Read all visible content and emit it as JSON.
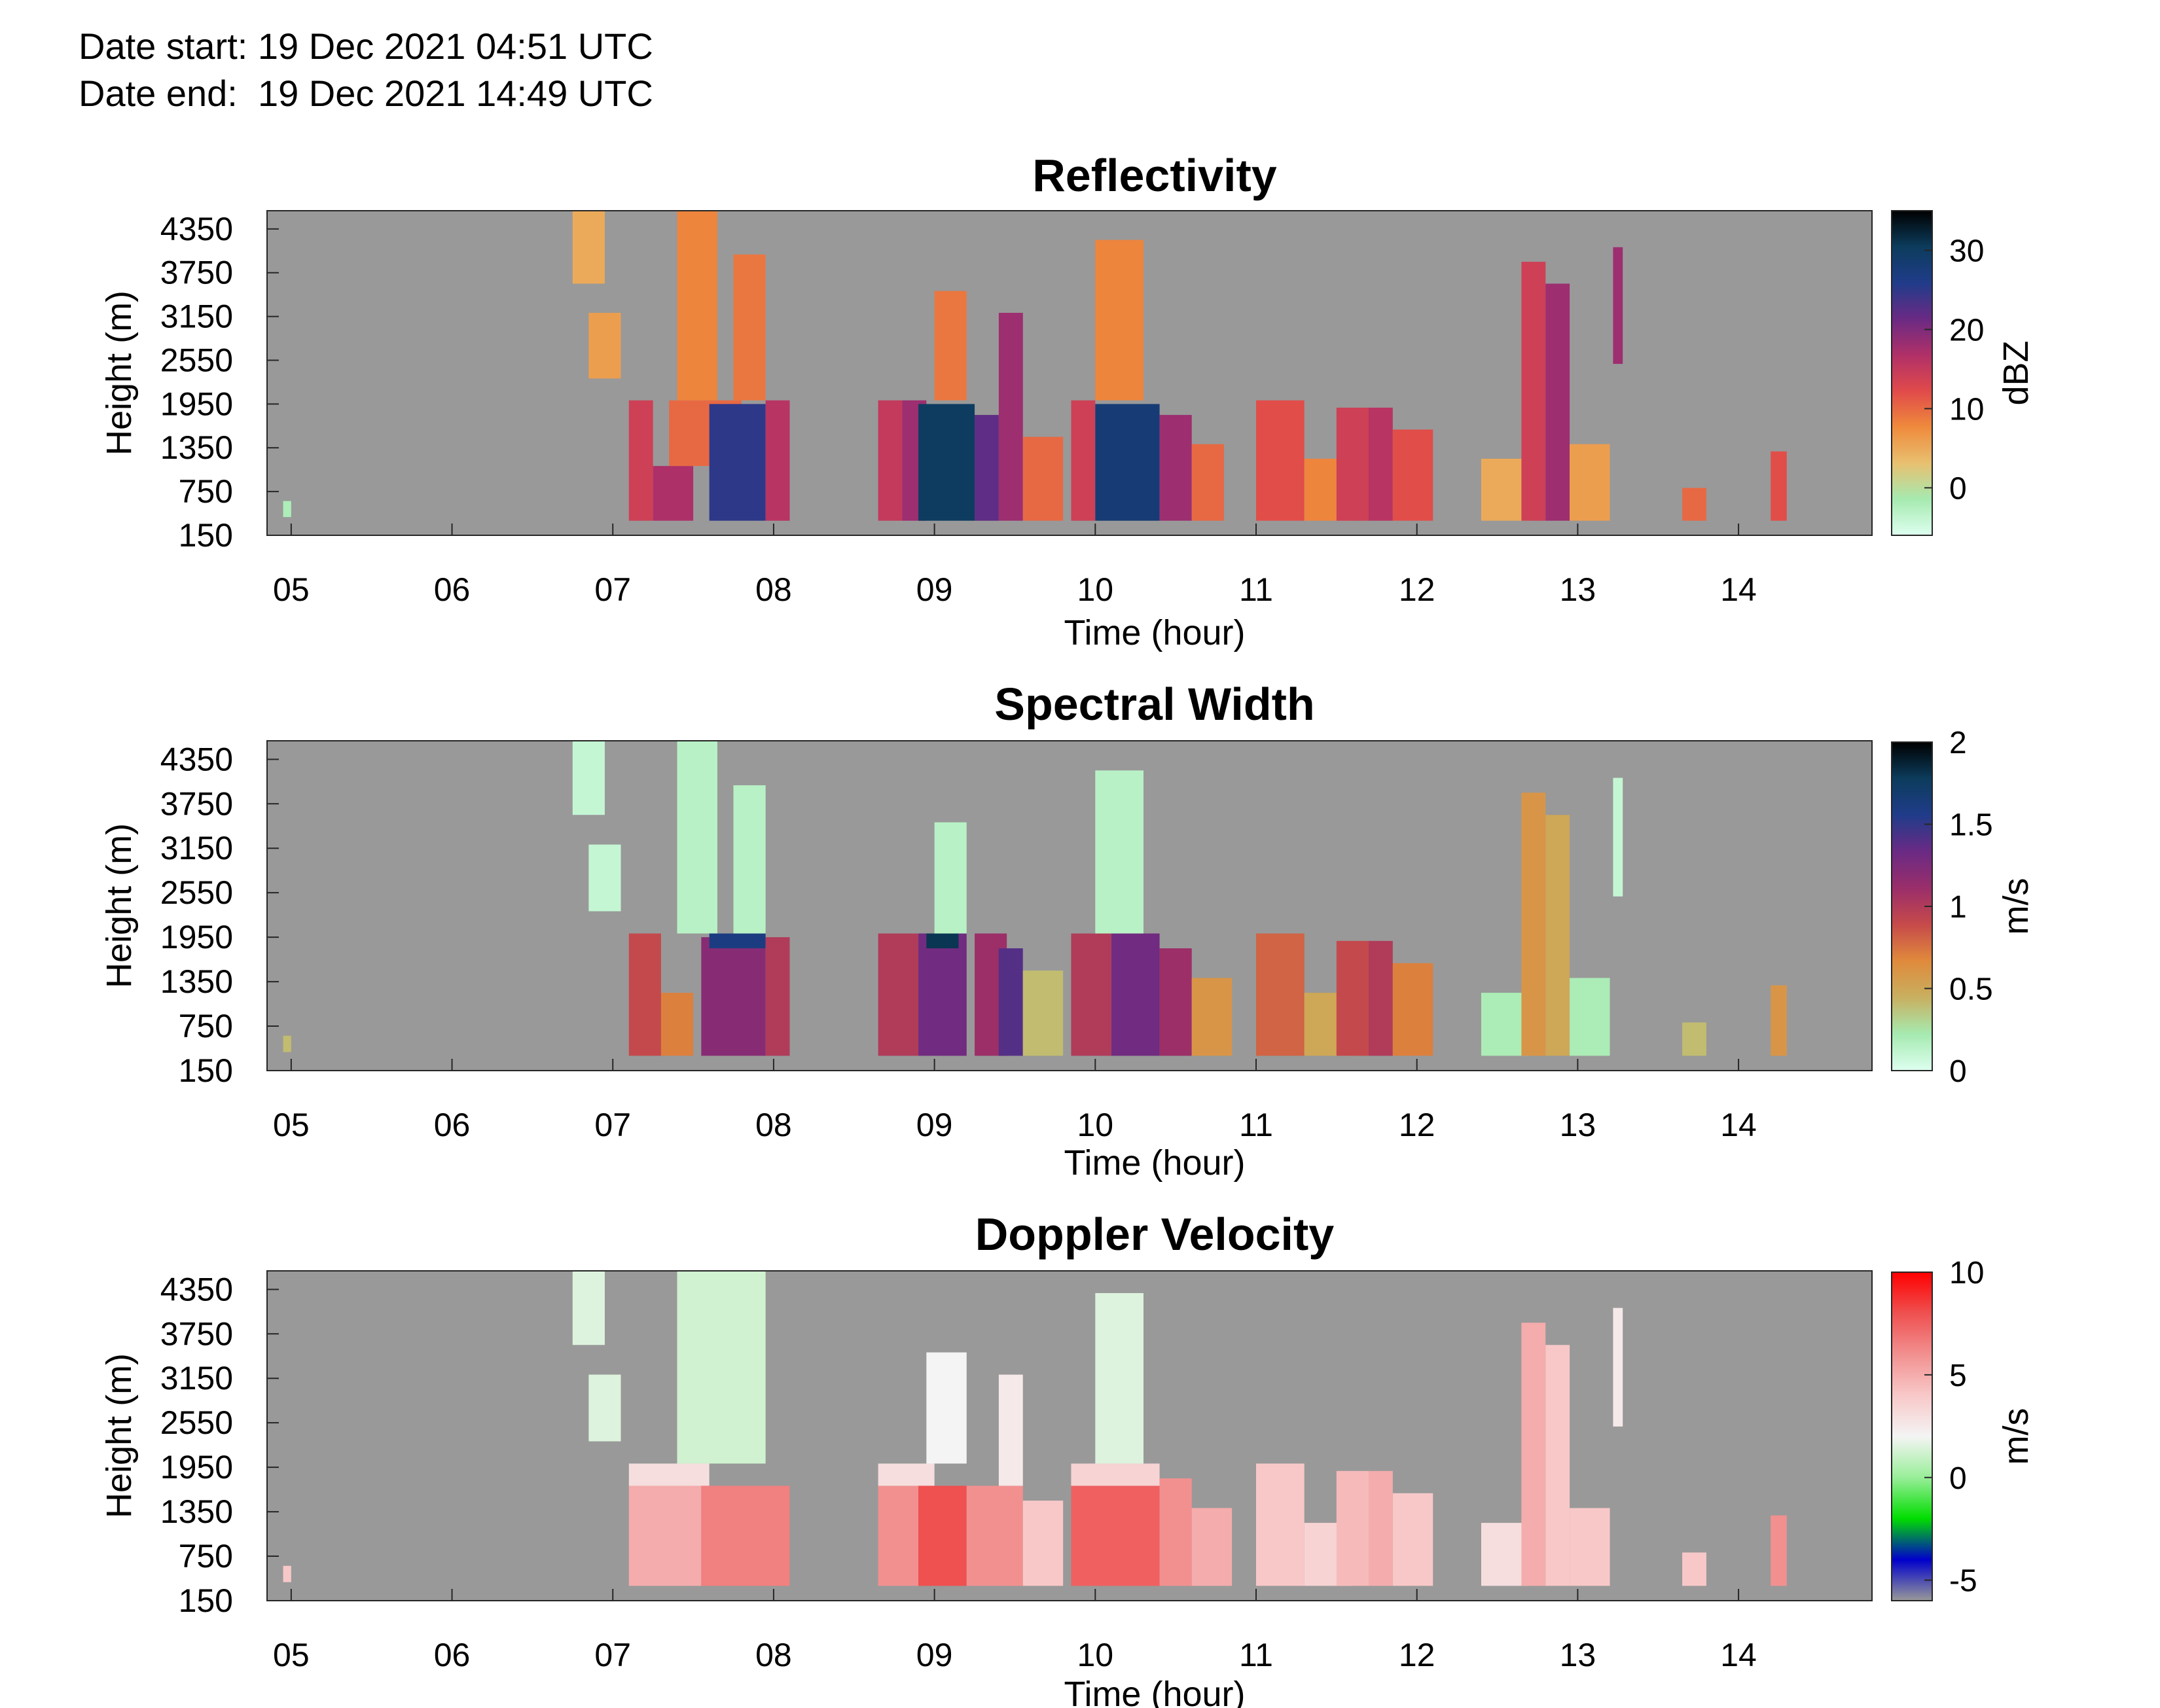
{
  "header": {
    "date_start": "Date start: 19 Dec 2021 04:51 UTC",
    "date_end": "Date end:  19 Dec 2021 14:49 UTC"
  },
  "chart_data": [
    {
      "type": "heatmap",
      "title": "Reflectivity",
      "xlabel": "Time (hour)",
      "ylabel": "Height (m)",
      "x_ticks": [
        "05",
        "06",
        "07",
        "08",
        "09",
        "10",
        "11",
        "12",
        "13",
        "14"
      ],
      "x_tick_values": [
        5,
        6,
        7,
        8,
        9,
        10,
        11,
        12,
        13,
        14
      ],
      "xlim": [
        4.85,
        14.83
      ],
      "y_ticks": [
        "150",
        "750",
        "1350",
        "1950",
        "2550",
        "3150",
        "3750",
        "4350"
      ],
      "y_tick_values": [
        150,
        750,
        1350,
        1950,
        2550,
        3150,
        3750,
        4350
      ],
      "ylim": [
        150,
        4600
      ],
      "colorbar": {
        "label": "dBZ",
        "range": [
          -6,
          35
        ],
        "ticks": [
          "0",
          "10",
          "20",
          "30"
        ],
        "tick_values": [
          0,
          10,
          20,
          30
        ],
        "colors": [
          "#ddfff0",
          "#a6eab0",
          "#e8c070",
          "#ef8a3c",
          "#e04a4a",
          "#b03068",
          "#6a2a84",
          "#203c8a",
          "#0c3c5c",
          "#000000"
        ]
      },
      "background_color": "#999999",
      "cells": [
        [
          4.95,
          5.0,
          400,
          620,
          -2
        ],
        [
          6.75,
          6.95,
          3600,
          4600,
          5
        ],
        [
          6.85,
          7.05,
          2300,
          3200,
          6
        ],
        [
          7.1,
          7.25,
          350,
          2000,
          14
        ],
        [
          7.25,
          7.5,
          350,
          1100,
          17
        ],
        [
          7.35,
          7.8,
          1100,
          2000,
          10
        ],
        [
          7.4,
          7.65,
          2000,
          4600,
          8
        ],
        [
          7.6,
          7.95,
          350,
          1950,
          25
        ],
        [
          7.75,
          7.95,
          2000,
          4000,
          9
        ],
        [
          7.95,
          8.1,
          350,
          2000,
          16
        ],
        [
          8.65,
          8.8,
          350,
          2000,
          15
        ],
        [
          8.8,
          8.95,
          350,
          2000,
          18
        ],
        [
          8.9,
          9.25,
          350,
          1950,
          30
        ],
        [
          9.0,
          9.2,
          2000,
          3500,
          9
        ],
        [
          9.25,
          9.4,
          350,
          1800,
          22
        ],
        [
          9.4,
          9.55,
          350,
          3200,
          18
        ],
        [
          9.55,
          9.8,
          350,
          1500,
          10
        ],
        [
          9.85,
          10.0,
          350,
          2000,
          14
        ],
        [
          10.0,
          10.4,
          350,
          1950,
          28
        ],
        [
          10.0,
          10.3,
          2000,
          4200,
          8
        ],
        [
          10.4,
          10.6,
          350,
          1800,
          18
        ],
        [
          10.6,
          10.8,
          350,
          1400,
          10
        ],
        [
          11.0,
          11.3,
          350,
          2000,
          12
        ],
        [
          11.3,
          11.6,
          350,
          1200,
          8
        ],
        [
          11.5,
          11.7,
          350,
          1900,
          14
        ],
        [
          11.7,
          11.85,
          350,
          1900,
          16
        ],
        [
          11.85,
          12.1,
          350,
          1600,
          12
        ],
        [
          12.4,
          12.7,
          350,
          1200,
          5
        ],
        [
          12.65,
          12.8,
          350,
          3900,
          14
        ],
        [
          12.8,
          12.95,
          350,
          3600,
          18
        ],
        [
          12.95,
          13.2,
          350,
          1400,
          6
        ],
        [
          13.22,
          13.28,
          2500,
          4100,
          18
        ],
        [
          13.65,
          13.8,
          350,
          800,
          10
        ],
        [
          14.2,
          14.3,
          350,
          1300,
          12
        ]
      ]
    },
    {
      "type": "heatmap",
      "title": "Spectral Width",
      "xlabel": "Time (hour)",
      "ylabel": "Height (m)",
      "x_ticks": [
        "05",
        "06",
        "07",
        "08",
        "09",
        "10",
        "11",
        "12",
        "13",
        "14"
      ],
      "x_tick_values": [
        5,
        6,
        7,
        8,
        9,
        10,
        11,
        12,
        13,
        14
      ],
      "xlim": [
        4.85,
        14.83
      ],
      "y_ticks": [
        "150",
        "750",
        "1350",
        "1950",
        "2550",
        "3150",
        "3750",
        "4350"
      ],
      "y_tick_values": [
        150,
        750,
        1350,
        1950,
        2550,
        3150,
        3750,
        4350
      ],
      "ylim": [
        150,
        4600
      ],
      "colorbar": {
        "label": "m/s",
        "range": [
          0,
          2
        ],
        "ticks": [
          "0",
          "0.5",
          "1",
          "1.5",
          "2"
        ],
        "tick_values": [
          0,
          0.5,
          1,
          1.5,
          2
        ],
        "colors": [
          "#ddfff0",
          "#a6eab0",
          "#c8b060",
          "#e08a3c",
          "#c64a4a",
          "#9a2e6a",
          "#6a2a84",
          "#203c8a",
          "#0c3c5c",
          "#000000"
        ]
      },
      "background_color": "#999999",
      "cells": [
        [
          4.95,
          5.0,
          400,
          620,
          0.4
        ],
        [
          6.75,
          6.95,
          3600,
          4600,
          0.1
        ],
        [
          6.85,
          7.05,
          2300,
          3200,
          0.1
        ],
        [
          7.1,
          7.3,
          350,
          2000,
          0.9
        ],
        [
          7.3,
          7.5,
          350,
          1200,
          0.7
        ],
        [
          7.4,
          7.65,
          2000,
          4600,
          0.15
        ],
        [
          7.55,
          7.95,
          350,
          1950,
          1.2
        ],
        [
          7.6,
          7.95,
          1800,
          2000,
          1.6
        ],
        [
          7.75,
          7.95,
          2000,
          4000,
          0.15
        ],
        [
          7.95,
          8.1,
          350,
          1950,
          1.0
        ],
        [
          8.65,
          8.9,
          350,
          2000,
          1.0
        ],
        [
          8.9,
          9.2,
          350,
          2000,
          1.3
        ],
        [
          8.95,
          9.15,
          1800,
          2000,
          1.8
        ],
        [
          9.0,
          9.2,
          2000,
          3500,
          0.15
        ],
        [
          9.25,
          9.45,
          350,
          2000,
          1.1
        ],
        [
          9.4,
          9.55,
          350,
          1800,
          1.4
        ],
        [
          9.55,
          9.8,
          350,
          1500,
          0.4
        ],
        [
          9.85,
          10.1,
          350,
          2000,
          1.0
        ],
        [
          10.1,
          10.4,
          350,
          2000,
          1.3
        ],
        [
          10.0,
          10.3,
          2000,
          4200,
          0.15
        ],
        [
          10.4,
          10.6,
          350,
          1800,
          1.1
        ],
        [
          10.6,
          10.85,
          350,
          1400,
          0.6
        ],
        [
          11.0,
          11.3,
          350,
          2000,
          0.8
        ],
        [
          11.3,
          11.6,
          350,
          1200,
          0.5
        ],
        [
          11.5,
          11.7,
          350,
          1900,
          0.9
        ],
        [
          11.7,
          11.85,
          350,
          1900,
          1.0
        ],
        [
          11.85,
          12.1,
          350,
          1600,
          0.7
        ],
        [
          12.4,
          12.7,
          350,
          1200,
          0.2
        ],
        [
          12.65,
          12.8,
          350,
          3900,
          0.6
        ],
        [
          12.8,
          12.95,
          350,
          3600,
          0.5
        ],
        [
          12.95,
          13.2,
          350,
          1400,
          0.2
        ],
        [
          13.22,
          13.28,
          2500,
          4100,
          0.1
        ],
        [
          13.65,
          13.8,
          350,
          800,
          0.4
        ],
        [
          14.2,
          14.3,
          350,
          1300,
          0.6
        ]
      ]
    },
    {
      "type": "heatmap",
      "title": "Doppler Velocity",
      "xlabel": "Time (hour)",
      "ylabel": "Height (m)",
      "x_ticks": [
        "05",
        "06",
        "07",
        "08",
        "09",
        "10",
        "11",
        "12",
        "13",
        "14"
      ],
      "x_tick_values": [
        5,
        6,
        7,
        8,
        9,
        10,
        11,
        12,
        13,
        14
      ],
      "xlim": [
        4.85,
        14.83
      ],
      "y_ticks": [
        "150",
        "750",
        "1350",
        "1950",
        "2550",
        "3150",
        "3750",
        "4350"
      ],
      "y_tick_values": [
        150,
        750,
        1350,
        1950,
        2550,
        3150,
        3750,
        4350
      ],
      "ylim": [
        150,
        4600
      ],
      "colorbar": {
        "label": "m/s",
        "range": [
          -6,
          10
        ],
        "ticks": [
          "-5",
          "0",
          "5",
          "10"
        ],
        "tick_values": [
          -5,
          0,
          5,
          10
        ],
        "colors": [
          "#999999",
          "#0000cc",
          "#00dd00",
          "#99ee99",
          "#f4f4f4",
          "#f8c8c8",
          "#f29090",
          "#ef5050",
          "#ff0000"
        ]
      },
      "background_color": "#999999",
      "cells": [
        [
          4.95,
          5.0,
          400,
          620,
          4
        ],
        [
          6.75,
          6.95,
          3600,
          4600,
          1.5
        ],
        [
          6.85,
          7.05,
          2300,
          3200,
          1.5
        ],
        [
          7.1,
          7.55,
          350,
          1700,
          5
        ],
        [
          7.1,
          7.6,
          1700,
          2000,
          3
        ],
        [
          7.4,
          7.95,
          2000,
          4600,
          1.2
        ],
        [
          7.55,
          8.1,
          350,
          1700,
          6.5
        ],
        [
          8.65,
          8.9,
          350,
          1700,
          6
        ],
        [
          8.65,
          9.0,
          1700,
          2000,
          3
        ],
        [
          8.9,
          9.2,
          350,
          1700,
          8
        ],
        [
          8.95,
          9.2,
          2000,
          3500,
          2
        ],
        [
          9.2,
          9.55,
          350,
          1700,
          6
        ],
        [
          9.4,
          9.55,
          1700,
          3200,
          2.5
        ],
        [
          9.55,
          9.8,
          350,
          1500,
          4
        ],
        [
          9.85,
          10.4,
          350,
          1700,
          7.5
        ],
        [
          9.85,
          10.4,
          1700,
          2000,
          3.5
        ],
        [
          10.0,
          10.3,
          2000,
          4300,
          1.5
        ],
        [
          10.4,
          10.6,
          350,
          1800,
          6
        ],
        [
          10.6,
          10.85,
          350,
          1400,
          5
        ],
        [
          11.0,
          11.3,
          350,
          2000,
          4
        ],
        [
          11.3,
          11.6,
          350,
          1200,
          3.5
        ],
        [
          11.5,
          11.7,
          350,
          1900,
          4.5
        ],
        [
          11.7,
          11.85,
          350,
          1900,
          5
        ],
        [
          11.85,
          12.1,
          350,
          1600,
          4
        ],
        [
          12.4,
          12.7,
          350,
          1200,
          3
        ],
        [
          12.65,
          12.8,
          350,
          3900,
          5
        ],
        [
          12.8,
          12.95,
          350,
          3600,
          4
        ],
        [
          12.95,
          13.2,
          350,
          1400,
          4
        ],
        [
          13.22,
          13.28,
          2500,
          4100,
          2.5
        ],
        [
          13.65,
          13.8,
          350,
          800,
          4
        ],
        [
          14.2,
          14.3,
          350,
          1300,
          6
        ]
      ]
    }
  ]
}
